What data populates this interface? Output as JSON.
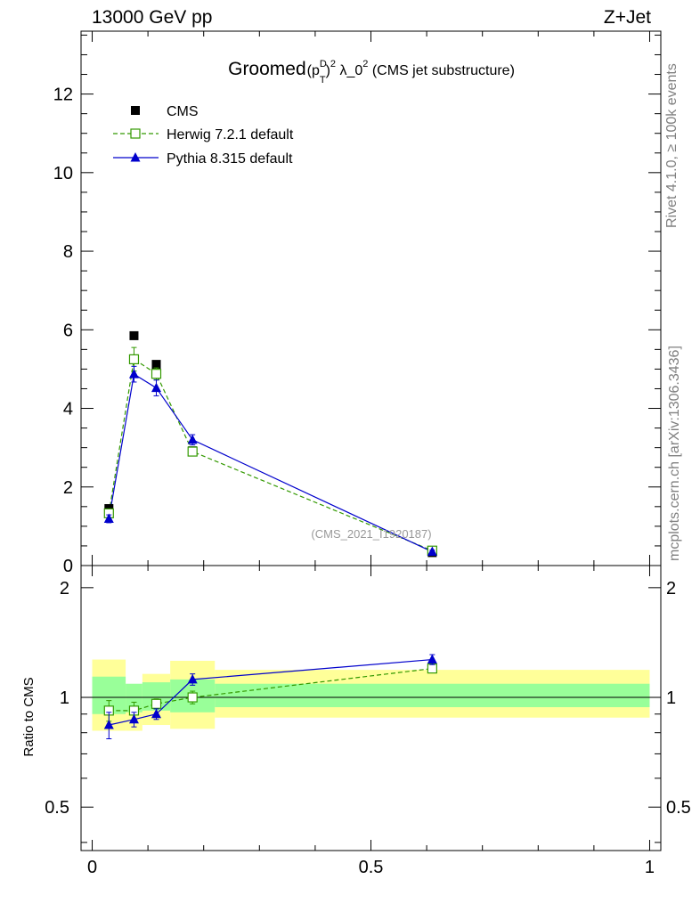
{
  "header": {
    "left": "13000 GeV pp",
    "right": "Z+Jet"
  },
  "side_labels": {
    "rivet": "Rivet 4.1.0, ≥ 100k events",
    "mcplots": "mcplots.cern.ch [arXiv:1306.3436]"
  },
  "chart_data": {
    "type": "scatter",
    "title_main": "Groomed",
    "title_p": "(p",
    "title_sup_D": "D",
    "title_sub_T": "T",
    "title_close": ")",
    "title_sup_2": "2",
    "title_lambda": " λ_0",
    "title_tail": " (CMS jet substructure)",
    "watermark": "(CMS_2021_I1920187)",
    "ratio_ylabel": "Ratio to CMS",
    "x": [
      0.03,
      0.075,
      0.115,
      0.18,
      0.61
    ],
    "bins": [
      [
        0,
        0.06
      ],
      [
        0.06,
        0.09
      ],
      [
        0.09,
        0.14
      ],
      [
        0.14,
        0.22
      ],
      [
        0.22,
        1.0
      ]
    ],
    "xlim": [
      -0.02,
      1.02
    ],
    "ylim_main": [
      0,
      13.6
    ],
    "ylim_ratio": [
      0.38,
      2.3
    ],
    "x_ticks": [
      0,
      0.5,
      1
    ],
    "x_tick_labels": [
      "0",
      "0.5",
      "1"
    ],
    "y_ticks_main": [
      0,
      2,
      4,
      6,
      8,
      10,
      12
    ],
    "y_tick_labels_main": [
      "0",
      "2",
      "4",
      "6",
      "8",
      "10",
      "12"
    ],
    "y_ticks_ratio": [
      0.5,
      1,
      2
    ],
    "y_tick_labels_ratio": [
      "0.5",
      "1",
      "2"
    ],
    "series": [
      {
        "name": "CMS",
        "color": "#000000",
        "marker": "square-filled",
        "values": [
          1.45,
          5.85,
          5.12,
          2.92,
          0.33
        ]
      },
      {
        "name": "Herwig 7.2.1 default",
        "color": "#339900",
        "marker": "square-open",
        "dashed": true,
        "values": [
          1.33,
          5.25,
          4.88,
          2.9,
          0.38
        ],
        "errors": [
          0.09,
          0.3,
          0.15,
          0.1,
          0.04
        ],
        "ratio": [
          0.92,
          0.92,
          0.96,
          1.0,
          1.2
        ],
        "ratio_errors": [
          0.06,
          0.05,
          0.03,
          0.04,
          0.03
        ]
      },
      {
        "name": "Pythia 8.315 default",
        "color": "#0000cc",
        "marker": "triangle-filled",
        "values": [
          1.19,
          4.87,
          4.52,
          3.2,
          0.35
        ],
        "errors": [
          0.1,
          0.2,
          0.2,
          0.13,
          0.04
        ],
        "ratio": [
          0.84,
          0.87,
          0.9,
          1.12,
          1.27
        ],
        "ratio_errors": [
          0.07,
          0.04,
          0.03,
          0.04,
          0.04
        ]
      }
    ],
    "bands": {
      "green": [
        [
          0.9,
          1.14
        ],
        [
          0.91,
          1.09
        ],
        [
          0.92,
          1.1
        ],
        [
          0.91,
          1.12
        ],
        [
          0.94,
          1.09
        ]
      ],
      "yellow": [
        [
          0.81,
          1.27
        ],
        [
          0.81,
          1.04
        ],
        [
          0.84,
          1.16
        ],
        [
          0.82,
          1.26
        ],
        [
          0.88,
          1.19
        ]
      ],
      "green_color": "#99ff99",
      "yellow_color": "#ffff99"
    }
  }
}
